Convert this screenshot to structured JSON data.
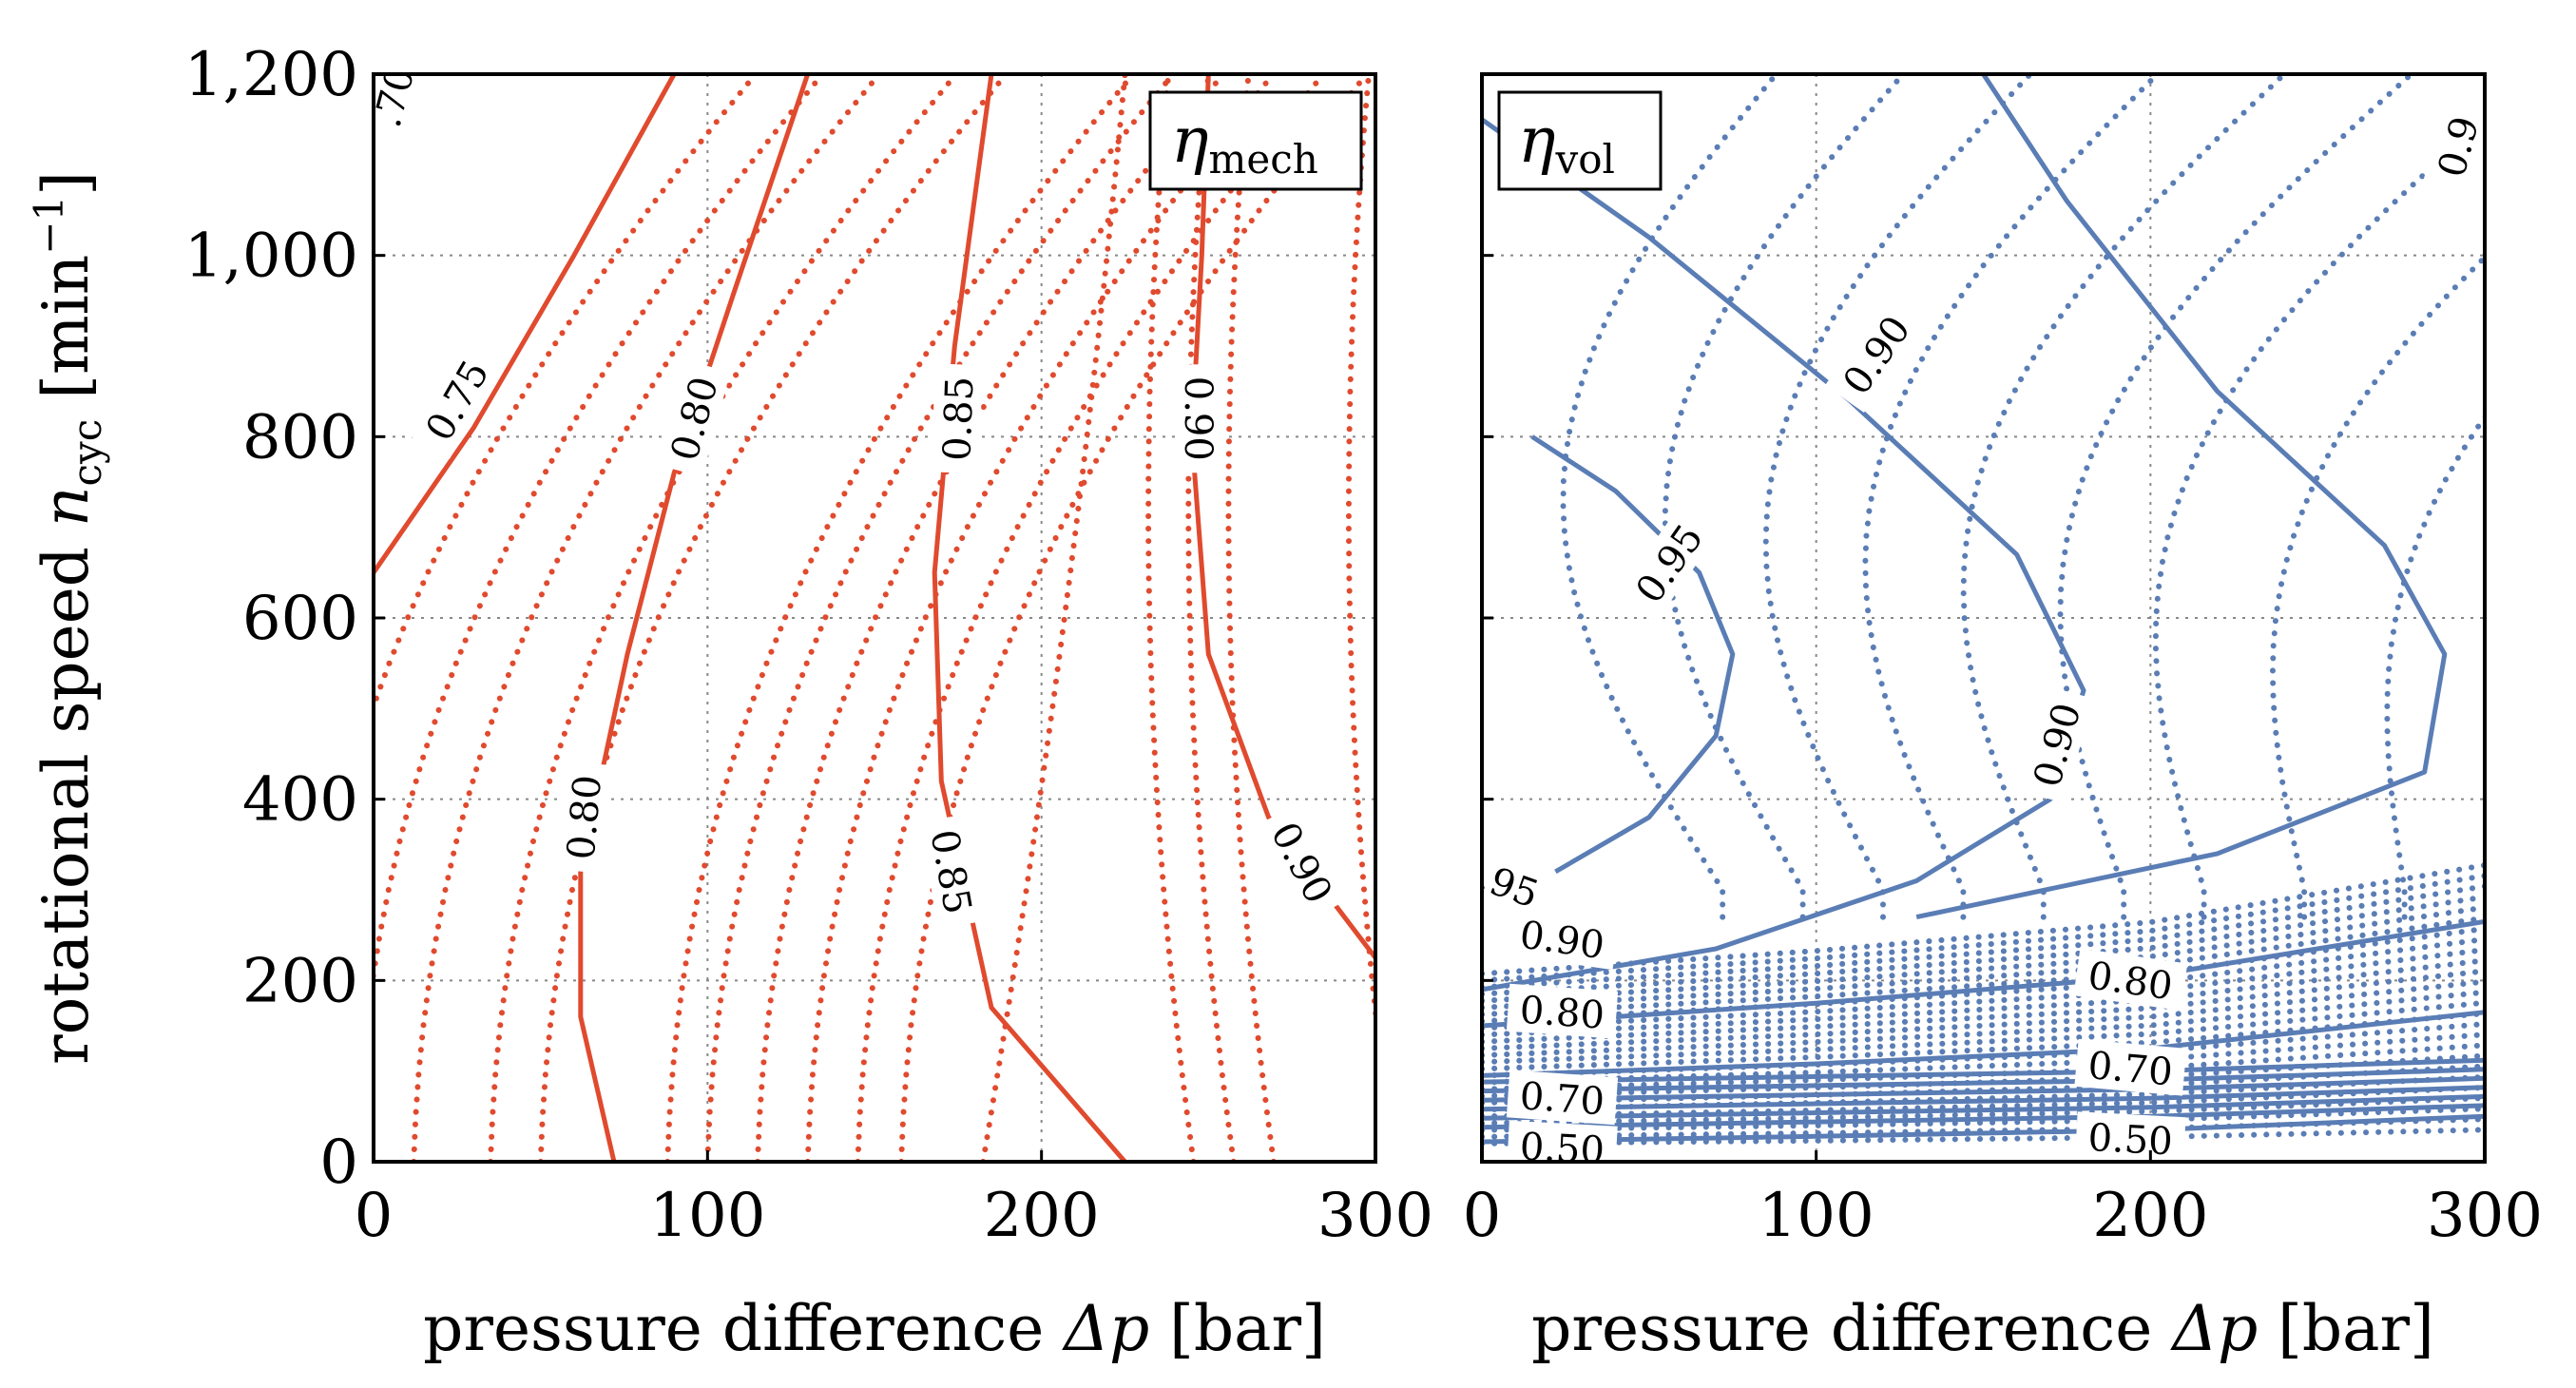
{
  "colors": {
    "mech": "#e04a2e",
    "vol": "#5a7db5",
    "grid": "#888888",
    "axis": "#000000"
  },
  "shared_y": {
    "label_main": "rotational speed ",
    "label_var": "n",
    "label_sub": "cyc",
    "label_unit": " [min",
    "label_exp": "−1",
    "label_close": "]",
    "ticks": [
      "0",
      "200",
      "400",
      "600",
      "800",
      "1,000",
      "1,200"
    ]
  },
  "chart_data": [
    {
      "type": "contour",
      "title": "η_mech",
      "legend_sym": "η",
      "legend_sub": "mech",
      "xlabel_main": "pressure difference ",
      "xlabel_var": "Δp",
      "xlabel_unit": " [bar]",
      "xlim": [
        0,
        300
      ],
      "ylim": [
        0,
        1200
      ],
      "xticks": [
        "0",
        "100",
        "200",
        "300"
      ],
      "solid_levels": [
        {
          "level": "0.75",
          "points": [
            [
              0,
              650
            ],
            [
              30,
              810
            ],
            [
              60,
              1000
            ],
            [
              90,
              1200
            ]
          ],
          "labels": [
            [
              25,
              840,
              "0.75",
              -60
            ]
          ]
        },
        {
          "level": "0.80",
          "points": [
            [
              72,
              0
            ],
            [
              62,
              160
            ],
            [
              62,
              320
            ],
            [
              76,
              560
            ],
            [
              90,
              760
            ],
            [
              108,
              960
            ],
            [
              130,
              1200
            ]
          ],
          "labels": [
            [
              96,
              820,
              "0.80",
              -75
            ],
            [
              63,
              380,
              "0.80",
              -85
            ]
          ]
        },
        {
          "level": "0.85",
          "points": [
            [
              225,
              0
            ],
            [
              185,
              170
            ],
            [
              170,
              420
            ],
            [
              168,
              650
            ],
            [
              174,
              900
            ],
            [
              185,
              1200
            ]
          ],
          "labels": [
            [
              175,
              820,
              "0.85",
              -88
            ],
            [
              173,
              320,
              "0.85",
              80
            ]
          ]
        },
        {
          "level": "0.90",
          "points": [
            [
              300,
              225
            ],
            [
              268,
              380
            ],
            [
              250,
              560
            ],
            [
              245,
              800
            ],
            [
              248,
              1000
            ],
            [
              250,
              1200
            ]
          ],
          "labels": [
            [
              247,
              820,
              "0.90",
              90
            ],
            [
              278,
              330,
              "0.90",
              62
            ]
          ]
        }
      ],
      "dotted_series": "mech",
      "extra_labels": [
        [
          6,
          1175,
          ".70",
          -75
        ]
      ]
    },
    {
      "type": "contour",
      "title": "η_vol",
      "legend_sym": "η",
      "legend_sub": "vol",
      "xlabel_main": "pressure difference ",
      "xlabel_var": "Δp",
      "xlabel_unit": " [bar]",
      "xlim": [
        0,
        300
      ],
      "ylim": [
        0,
        1200
      ],
      "xticks": [
        "0",
        "100",
        "200",
        "300"
      ],
      "solid_levels": [
        {
          "level": "0.95",
          "points": [
            [
              22,
              320
            ],
            [
              50,
              380
            ],
            [
              70,
              470
            ],
            [
              75,
              560
            ],
            [
              65,
              650
            ],
            [
              40,
              740
            ],
            [
              15,
              800
            ]
          ],
          "labels": [
            [
              56,
              660,
              "0.95",
              -55
            ],
            [
              8,
              305,
              ".95",
              20
            ]
          ]
        },
        {
          "level": "0.90",
          "points": [
            [
              0,
              190
            ],
            [
              70,
              235
            ],
            [
              130,
              310
            ],
            [
              170,
              400
            ],
            [
              180,
              520
            ],
            [
              160,
              670
            ],
            [
              110,
              840
            ],
            [
              50,
              1020
            ],
            [
              0,
              1150
            ]
          ],
          "labels": [
            [
              118,
              890,
              "0.90",
              -55
            ],
            [
              24,
              245,
              "0.90",
              8
            ],
            [
              172,
              460,
              "0.90",
              -75
            ]
          ]
        },
        {
          "level": "0.90b",
          "points": [
            [
              130,
              270
            ],
            [
              220,
              340
            ],
            [
              282,
              430
            ],
            [
              288,
              560
            ],
            [
              270,
              680
            ],
            [
              220,
              850
            ],
            [
              175,
              1060
            ],
            [
              150,
              1200
            ]
          ],
          "labels": []
        },
        {
          "level": "0.80",
          "points": [
            [
              0,
              150
            ],
            [
              100,
              175
            ],
            [
              200,
              205
            ],
            [
              300,
              265
            ]
          ],
          "labels": [
            [
              194,
              200,
              "0.80",
              8
            ]
          ]
        },
        {
          "level": "0.70",
          "points": [
            [
              0,
              95
            ],
            [
              100,
              108
            ],
            [
              200,
              125
            ],
            [
              300,
              165
            ]
          ],
          "labels": [
            [
              194,
              103,
              "0.70",
              5
            ]
          ]
        },
        {
          "level": "0.50",
          "points": [
            [
              0,
              22
            ],
            [
              100,
              28
            ],
            [
              200,
              35
            ],
            [
              300,
              50
            ]
          ],
          "labels": [
            [
              194,
              25,
              "0.50",
              3
            ]
          ]
        }
      ],
      "dotted_series": "vol",
      "extra_labels": [
        [
          24,
          165,
          "0.80",
          4
        ],
        [
          24,
          70,
          "0.70",
          4
        ],
        [
          24,
          15,
          "0.50",
          3
        ],
        [
          292,
          1120,
          "0.9",
          -75
        ]
      ]
    }
  ]
}
